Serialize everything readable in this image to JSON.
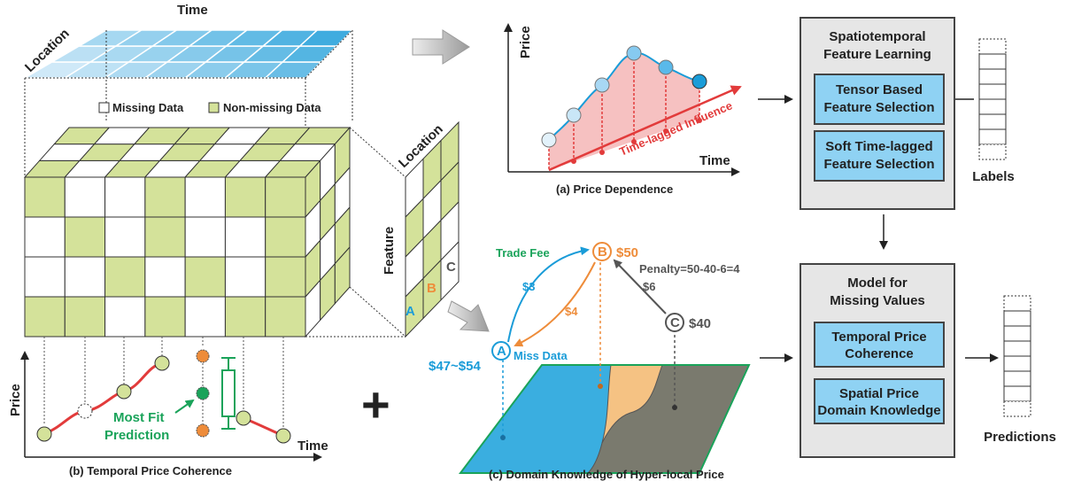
{
  "colors": {
    "green_cell": "#d4e29a",
    "blue_dark": "#1a9cd8",
    "blue_light": "#cfe9f8",
    "pink": "#f6c1c1",
    "red": "#e23b3b",
    "orange": "#ee8c3a",
    "grey_region": "#7a7a6e",
    "orange_region": "#f5c283",
    "blue_region": "#3aaee0",
    "panel_bg": "#e6e6e6",
    "box_blue": "#8fd2f3"
  },
  "tensor": {
    "time_label": "Time",
    "location_label": "Location",
    "legend_missing": "Missing Data",
    "legend_nonmissing": "Non-missing Data",
    "side_location": "Location",
    "side_feature": "Feature",
    "abc": [
      "A",
      "B",
      "C"
    ]
  },
  "temporal": {
    "y_label": "Price",
    "x_label": "Time",
    "annotation_line1": "Most Fit",
    "annotation_line2": "Prediction",
    "caption": "(b) Temporal Price Coherence"
  },
  "price_dependence": {
    "y_label": "Price",
    "x_label": "Time",
    "influence": "Time-lagged Influence",
    "caption": "(a) Price Dependence"
  },
  "domain": {
    "trade_fee": "Trade Fee",
    "node_a": "A",
    "node_b": "B",
    "node_c": "C",
    "price_b": "$50",
    "price_c": "$40",
    "range_a": "$47~$54",
    "miss_data": "Miss Data",
    "fee_3": "$3",
    "fee_4": "$4",
    "fee_6": "$6",
    "penalty": "Penalty=50-40-6=4",
    "caption": "(c) Domain Knowledge of Hyper-local Price"
  },
  "plus_sign": "+",
  "feature_panel": {
    "title_line1": "Spatiotemporal",
    "title_line2": "Feature Learning",
    "box1_line1": "Tensor Based",
    "box1_line2": "Feature Selection",
    "box2_line1": "Soft Time-lagged",
    "box2_line2": "Feature Selection"
  },
  "model_panel": {
    "title_line1": "Model for",
    "title_line2": "Missing Values",
    "box1_line1": "Temporal Price",
    "box1_line2": "Coherence",
    "box2_line1": "Spatial Price",
    "box2_line2": "Domain Knowledge"
  },
  "labels_caption": "Labels",
  "predictions_caption": "Predictions"
}
